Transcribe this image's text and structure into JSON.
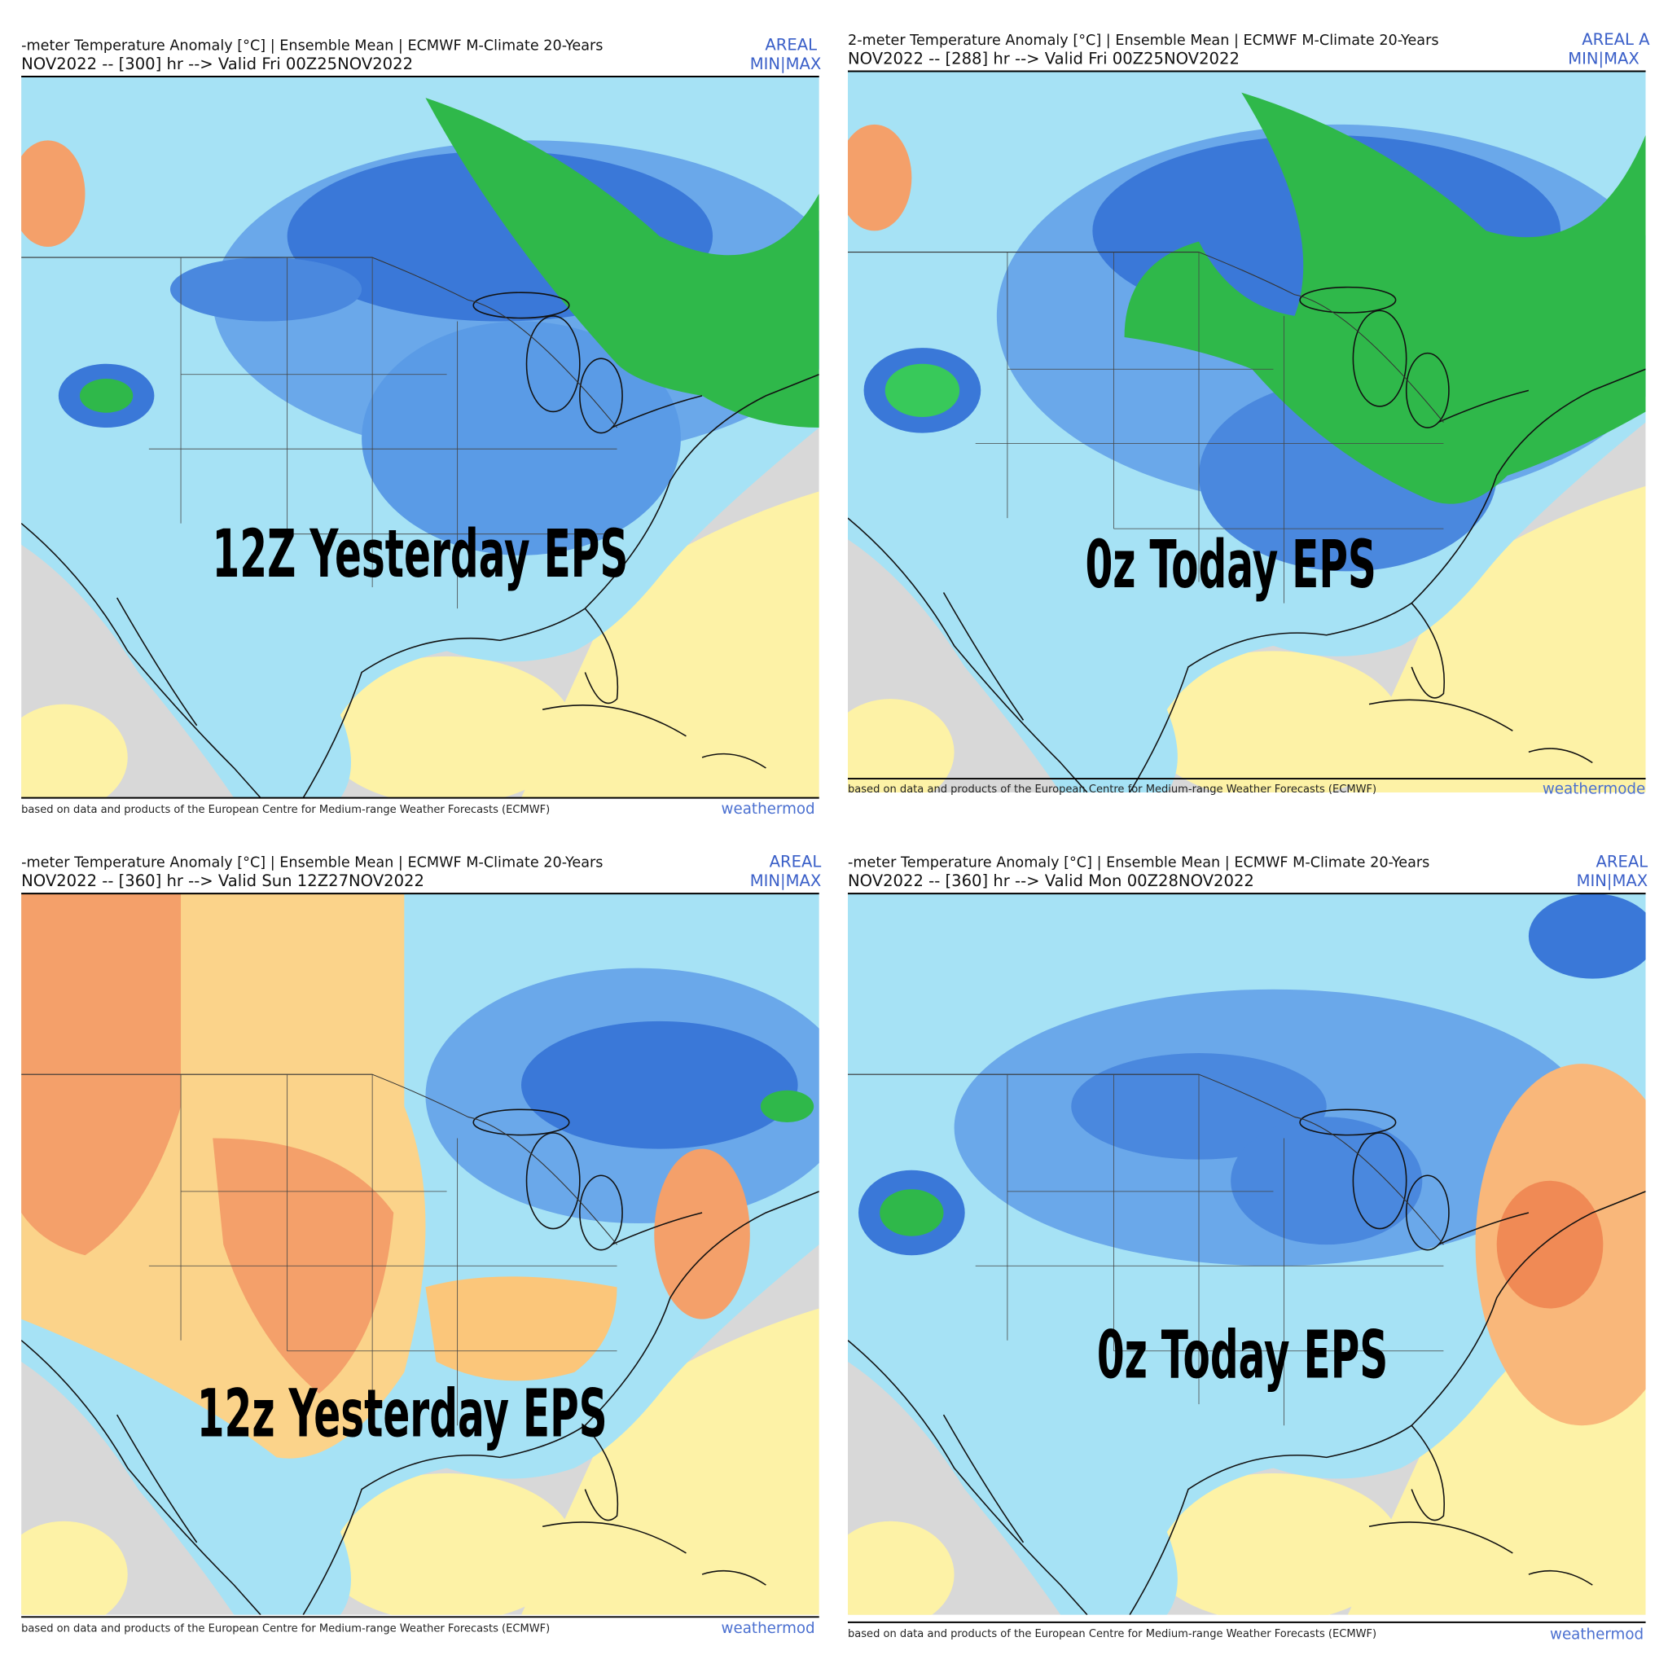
{
  "panels": [
    {
      "header": "-meter Temperature Anomaly [°C] | Ensemble Mean | ECMWF M-Climate 20-Years",
      "run": "NOV2022 -- [300] hr --> Valid Fri 00Z25NOV2022",
      "areal": "AREAL",
      "minmax": "MIN|MAX",
      "footer": "based on data and products of the European Centre for Medium-range Weather Forecasts (ECMWF)",
      "brand": "weathermod",
      "label": "12Z Yesterday EPS"
    },
    {
      "header": "2-meter Temperature Anomaly [°C] | Ensemble Mean | ECMWF M-Climate 20-Years",
      "run": "NOV2022 -- [288] hr --> Valid Fri 00Z25NOV2022",
      "areal": "AREAL A",
      "minmax": "MIN|MAX",
      "footer": "based on data and products of the European Centre for Medium-range Weather Forecasts (ECMWF)",
      "brand": "weathermode",
      "label": "0z Today EPS"
    },
    {
      "header": "-meter Temperature Anomaly [°C] | Ensemble Mean | ECMWF M-Climate 20-Years",
      "run": "NOV2022 -- [360] hr --> Valid Sun 12Z27NOV2022",
      "areal": "AREAL",
      "minmax": "MIN|MAX",
      "footer": "based on data and products of the European Centre for Medium-range Weather Forecasts (ECMWF)",
      "brand": "weathermod",
      "label": "12z Yesterday EPS"
    },
    {
      "header": "-meter Temperature Anomaly [°C] | Ensemble Mean | ECMWF M-Climate 20-Years",
      "run": "NOV2022 -- [360] hr --> Valid Mon 00Z28NOV2022",
      "areal": "AREAL",
      "minmax": "MIN|MAX",
      "footer": "based on data and products of the European Centre for Medium-range Weather Forecasts (ECMWF)",
      "brand": "weathermod",
      "label": "0z Today EPS"
    }
  ]
}
